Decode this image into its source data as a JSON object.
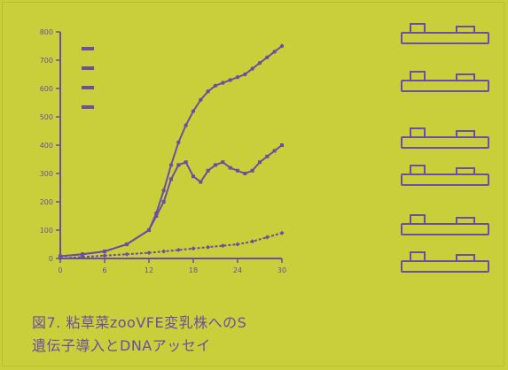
{
  "colors": {
    "background": "#c9cf3a",
    "ink": "#6a4fa0"
  },
  "chart_data": {
    "type": "line",
    "title": "",
    "xlabel": "",
    "ylabel": "",
    "x_ticks": [
      "0",
      "6",
      "12",
      "18",
      "24",
      "30"
    ],
    "y_ticks": [
      "0",
      "100",
      "200",
      "300",
      "400",
      "500",
      "600",
      "700",
      "800"
    ],
    "xlim": [
      0,
      30
    ],
    "ylim": [
      0,
      800
    ],
    "grid": false,
    "legend_position": "top-left",
    "series": [
      {
        "name": "",
        "x": [
          0,
          3,
          6,
          9,
          12,
          13,
          14,
          15,
          16,
          17,
          18,
          19,
          20,
          21,
          22,
          23,
          24,
          25,
          26,
          27,
          28,
          29,
          30
        ],
        "y": [
          8,
          15,
          25,
          50,
          100,
          160,
          240,
          330,
          410,
          470,
          520,
          560,
          590,
          610,
          620,
          630,
          640,
          650,
          670,
          690,
          710,
          730,
          750
        ]
      },
      {
        "name": "",
        "x": [
          0,
          3,
          6,
          9,
          12,
          13,
          14,
          15,
          16,
          17,
          18,
          19,
          20,
          21,
          22,
          23,
          24,
          25,
          26,
          27,
          28,
          29,
          30
        ],
        "y": [
          8,
          15,
          25,
          50,
          100,
          150,
          200,
          280,
          330,
          340,
          290,
          270,
          310,
          330,
          340,
          320,
          310,
          300,
          310,
          340,
          360,
          380,
          400
        ]
      },
      {
        "name": "",
        "x": [
          0,
          3,
          6,
          9,
          12,
          14,
          16,
          18,
          20,
          22,
          24,
          26,
          28,
          30
        ],
        "y": [
          0,
          5,
          10,
          15,
          20,
          25,
          30,
          35,
          40,
          45,
          50,
          60,
          75,
          90
        ]
      }
    ]
  },
  "legend": {
    "items": [
      "",
      "",
      "",
      ""
    ]
  },
  "right_panel": {
    "rows": [
      {
        "label": "",
        "arrow": ""
      },
      {
        "label": "",
        "arrow": ""
      },
      {
        "label": "",
        "arrow": ""
      },
      {
        "label": "",
        "arrow": ""
      },
      {
        "label": "",
        "arrow": ""
      },
      {
        "label": "",
        "arrow": ""
      },
      {
        "label": "",
        "arrow": ""
      }
    ],
    "footer": ""
  },
  "caption": {
    "line1": "図7. 粘草菜zooVFE変乳株へのS",
    "line2": "遺伝子導入とDNAアッセイ"
  }
}
